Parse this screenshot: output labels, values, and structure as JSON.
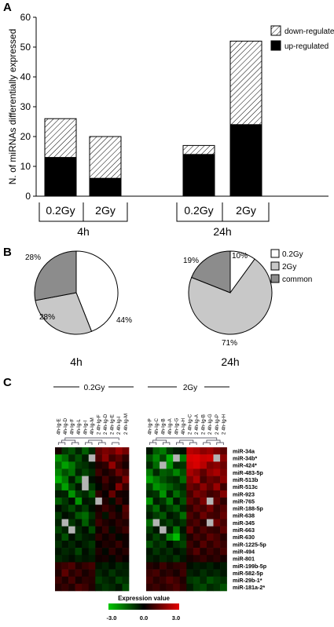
{
  "panels": {
    "a_letter": "A",
    "b_letter": "B",
    "c_letter": "C"
  },
  "chart_data": [
    {
      "type": "bar",
      "stacked": true,
      "ylabel": "N. of miRNAs differentially expressed",
      "ylim": [
        0,
        60
      ],
      "yticks": [
        0,
        10,
        20,
        30,
        40,
        50,
        60
      ],
      "legend_position": "top-right",
      "categories": [
        "0.2Gy 4h",
        "2Gy 4h",
        "0.2Gy 24h",
        "2Gy 24h"
      ],
      "category_labels": [
        "0.2Gy",
        "2Gy",
        "0.2Gy",
        "2Gy"
      ],
      "group_labels": [
        "4h",
        "24h"
      ],
      "series": [
        {
          "name": "up-regulated",
          "color": "#000000",
          "pattern": "solid",
          "values": [
            13,
            6,
            14,
            24
          ]
        },
        {
          "name": "down-regulated",
          "color": "#ffffff",
          "pattern": "hatched",
          "values": [
            13,
            14,
            3,
            28
          ]
        }
      ]
    },
    {
      "type": "pie",
      "label": "4h",
      "slices": [
        {
          "name": "0.2Gy",
          "value": 44,
          "label": "44%",
          "color": "#ffffff"
        },
        {
          "name": "2Gy",
          "value": 28,
          "label": "28%",
          "color": "#c8c8c8"
        },
        {
          "name": "common",
          "value": 28,
          "label": "28%",
          "color": "#8c8c8c"
        }
      ]
    },
    {
      "type": "pie",
      "label": "24h",
      "slices": [
        {
          "name": "0.2Gy",
          "value": 10,
          "label": "10%",
          "color": "#ffffff"
        },
        {
          "name": "2Gy",
          "value": 71,
          "label": "71%",
          "color": "#c8c8c8"
        },
        {
          "name": "common",
          "value": 19,
          "label": "19%",
          "color": "#8c8c8c"
        }
      ]
    },
    {
      "type": "heatmap",
      "group_labels": [
        "0.2Gy",
        "2Gy"
      ],
      "columns_left": [
        "4h-Ig-E",
        "4h-Ig-D",
        "4h-Ig-F",
        "4h-Ig-L",
        "4h-Ig-I",
        "4h-Ig-M",
        "2 4h-Ig-F",
        "2 4h-Ig-D",
        "2 4h-Ig-E",
        "2 4h-Ig-I",
        "2 4h-Ig-M"
      ],
      "columns_right": [
        "4h-Ig-P",
        "4h-Ig-C",
        "4h-Ig-B",
        "4h-Ig-A",
        "4h-Ig-G",
        "4h-Ig-H",
        "2 4h-Ig-C",
        "2 4h-Ig-A",
        "2 4h-Ig-B",
        "2 4h-Ig-G",
        "2 4h-Ig-P",
        "2 4h-Ig-H"
      ],
      "rows": [
        "miR-34a",
        "miR-34b*",
        "miR-424*",
        "miR-483-5p",
        "miR-513b",
        "miR-513c",
        "miR-923",
        "miR-765",
        "miR-188-5p",
        "miR-638",
        "miR-345",
        "miR-663",
        "miR-630",
        "miR-1225-5p",
        "miR-494",
        "miR-801",
        "miR-199b-5p",
        "miR-582-5p",
        "miR-29b-1*",
        "miR-181a-2*"
      ],
      "values_left": [
        [
          0.3,
          -0.8,
          -1.2,
          -0.5,
          -1.4,
          -0.6,
          1.2,
          1.6,
          1.4,
          2.0,
          1.5
        ],
        [
          -2.2,
          -1.6,
          -0.6,
          -1.2,
          -0.4,
          "NA",
          1.0,
          1.8,
          0.8,
          1.2,
          0.6
        ],
        [
          -1.5,
          -2.4,
          -1.8,
          -0.9,
          -0.7,
          -0.3,
          0.4,
          0.6,
          1.9,
          0.8,
          0.3
        ],
        [
          -2.0,
          -1.2,
          -1.7,
          -0.5,
          -1.0,
          -0.6,
          0.8,
          0.3,
          0.6,
          1.4,
          0.9
        ],
        [
          -2.6,
          -1.8,
          -0.4,
          -1.5,
          "NA",
          -0.2,
          0.2,
          0.9,
          0.3,
          0.5,
          1.6
        ],
        [
          -1.2,
          -2.4,
          -1.1,
          -0.3,
          "NA",
          -0.8,
          -0.1,
          0.5,
          0.2,
          1.7,
          0.7
        ],
        [
          -0.4,
          -0.5,
          -2.2,
          -0.9,
          -0.6,
          -1.4,
          0.6,
          0.1,
          1.3,
          0.3,
          0.2
        ],
        [
          -1.4,
          -0.8,
          -0.2,
          -2.2,
          -0.3,
          -0.5,
          "NA",
          0.4,
          -0.2,
          0.8,
          0.2
        ],
        [
          -0.2,
          -0.6,
          -1.1,
          -0.4,
          -0.9,
          -0.2,
          0.3,
          0.8,
          0.4,
          -0.1,
          1.1
        ],
        [
          -0.9,
          -0.2,
          -0.4,
          -1.3,
          -1.6,
          -0.7,
          0.5,
          -0.3,
          0.7,
          0.3,
          0.9
        ],
        [
          -0.5,
          "NA",
          -0.8,
          -0.3,
          -1.4,
          -0.4,
          0.8,
          0.4,
          0.2,
          0.6,
          0.4
        ],
        [
          -1.0,
          -0.5,
          "NA",
          -0.6,
          -0.2,
          -1.1,
          0.2,
          0.7,
          -0.2,
          0.4,
          0.8
        ],
        [
          -0.4,
          -1.2,
          -0.2,
          -0.8,
          -0.4,
          -0.3,
          0.6,
          0.2,
          0.5,
          -0.1,
          0.2
        ],
        [
          -0.7,
          -0.3,
          -0.6,
          -0.2,
          -0.5,
          -0.8,
          0.1,
          0.4,
          0.3,
          0.7,
          0.2
        ],
        [
          -0.3,
          -0.6,
          -0.4,
          -1.0,
          -0.2,
          -0.6,
          0.4,
          -0.1,
          0.6,
          0.2,
          0.5
        ],
        [
          -0.6,
          -0.4,
          -0.2,
          -0.5,
          -0.3,
          -0.4,
          0.2,
          0.3,
          -0.1,
          0.4,
          0.1
        ],
        [
          0.6,
          0.8,
          1.0,
          0.4,
          0.7,
          0.9,
          -0.3,
          -0.5,
          -0.2,
          -0.6,
          -0.4
        ],
        [
          0.4,
          1.2,
          0.5,
          0.8,
          0.3,
          0.6,
          -0.6,
          -0.3,
          -0.8,
          -0.4,
          -0.5
        ],
        [
          0.8,
          0.4,
          0.9,
          0.3,
          0.6,
          0.5,
          -0.9,
          -0.6,
          -0.4,
          -1.0,
          -0.7
        ],
        [
          0.5,
          0.7,
          0.4,
          1.0,
          0.8,
          0.4,
          -0.5,
          -0.8,
          -0.6,
          -0.3,
          -1.1
        ]
      ],
      "values_right": [
        [
          -0.3,
          -1.4,
          -1.8,
          -0.8,
          -0.4,
          -0.2,
          2.4,
          2.2,
          1.8,
          2.0,
          1.6,
          1.2
        ],
        [
          -1.2,
          -2.0,
          -1.0,
          -2.6,
          "NA",
          -1.8,
          2.8,
          2.9,
          2.6,
          2.7,
          "NA",
          1.8
        ],
        [
          -0.6,
          -1.6,
          "NA",
          -2.2,
          -0.6,
          -0.8,
          2.6,
          2.8,
          2.4,
          1.6,
          1.8,
          1.4
        ],
        [
          -1.8,
          -0.6,
          -1.4,
          -1.2,
          -2.0,
          -1.2,
          2.2,
          1.8,
          1.2,
          1.9,
          2.2,
          1.6
        ],
        [
          -2.4,
          -1.8,
          -1.2,
          -0.8,
          -0.6,
          -1.6,
          1.6,
          2.2,
          0.9,
          1.4,
          1.2,
          1.8
        ],
        [
          -1.0,
          -2.2,
          -1.8,
          -1.4,
          -0.9,
          -0.6,
          1.4,
          1.1,
          1.8,
          1.2,
          2.0,
          0.8
        ],
        [
          -0.6,
          -0.8,
          -2.2,
          -0.5,
          -1.6,
          -0.9,
          0.9,
          1.6,
          1.3,
          0.8,
          1.0,
          1.7
        ],
        [
          -2.2,
          -0.4,
          -0.8,
          -1.8,
          -0.3,
          -1.2,
          1.2,
          0.8,
          1.6,
          "NA",
          1.2,
          0.6
        ],
        [
          -0.8,
          -1.6,
          -0.4,
          -0.9,
          -1.4,
          -0.5,
          0.6,
          1.2,
          0.9,
          1.5,
          0.7,
          1.1
        ],
        [
          -0.4,
          -0.9,
          -1.3,
          -0.3,
          -0.6,
          -1.6,
          1.0,
          0.6,
          1.4,
          0.9,
          0.8,
          1.3
        ],
        [
          -1.6,
          "NA",
          -0.6,
          -1.0,
          -0.4,
          -0.8,
          0.7,
          1.0,
          0.5,
          "NA",
          1.4,
          0.9
        ],
        [
          -0.9,
          -0.3,
          "NA",
          -0.4,
          -1.8,
          -0.3,
          1.3,
          0.5,
          1.0,
          0.7,
          0.6,
          1.2
        ],
        [
          -0.4,
          -1.0,
          -0.5,
          -2.0,
          -2.8,
          -0.7,
          0.4,
          0.9,
          0.6,
          1.2,
          0.9,
          0.5
        ],
        [
          -1.2,
          -0.6,
          -0.9,
          -0.2,
          -0.7,
          -1.0,
          0.8,
          0.4,
          1.1,
          0.6,
          1.0,
          0.7
        ],
        [
          -0.3,
          -0.8,
          -0.4,
          -0.7,
          -0.2,
          -0.5,
          0.6,
          1.1,
          0.4,
          0.8,
          0.5,
          0.9
        ],
        [
          -0.5,
          -0.3,
          -0.6,
          -0.4,
          -0.8,
          -0.3,
          0.3,
          0.5,
          0.7,
          0.4,
          0.6,
          0.3
        ],
        [
          0.5,
          0.3,
          0.8,
          0.4,
          0.6,
          0.7,
          -0.2,
          -0.4,
          -0.3,
          -0.5,
          -0.2,
          -0.4
        ],
        [
          0.7,
          0.9,
          0.4,
          0.6,
          0.3,
          0.8,
          -0.5,
          -0.3,
          -0.7,
          -0.4,
          -0.6,
          -0.3
        ],
        [
          0.9,
          0.5,
          0.7,
          1.1,
          0.8,
          0.4,
          -0.8,
          -1.0,
          -0.6,
          -1.2,
          -0.9,
          -0.7
        ],
        [
          0.6,
          0.8,
          0.5,
          0.7,
          1.0,
          0.6,
          -0.4,
          -0.9,
          -1.1,
          -0.6,
          -0.8,
          -1.2
        ]
      ],
      "colorbar": {
        "title": "Expression value",
        "min_label": "-3.0",
        "mid_label": "0.0",
        "max_label": "3.0",
        "min": -3.0,
        "max": 3.0,
        "low_color": "#00c800",
        "mid_color": "#000000",
        "high_color": "#e60000",
        "na_color": "#b4b4b4"
      }
    }
  ]
}
